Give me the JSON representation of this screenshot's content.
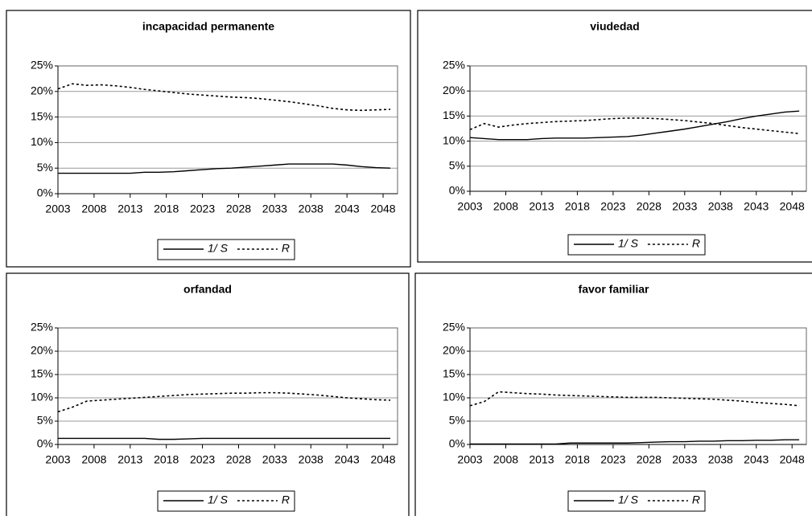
{
  "chart_data": [
    {
      "type": "line",
      "title": "incapacidad permanente",
      "x": [
        2003,
        2005,
        2007,
        2009,
        2011,
        2013,
        2015,
        2017,
        2019,
        2021,
        2023,
        2025,
        2027,
        2029,
        2031,
        2033,
        2035,
        2037,
        2039,
        2041,
        2043,
        2045,
        2047,
        2049
      ],
      "series": [
        {
          "name": "1/ S",
          "color": "#000000",
          "style": "solid",
          "values": [
            4,
            4,
            4,
            4,
            4,
            4,
            4.2,
            4.2,
            4.3,
            4.5,
            4.7,
            4.9,
            5.0,
            5.2,
            5.4,
            5.6,
            5.8,
            5.8,
            5.8,
            5.8,
            5.6,
            5.3,
            5.1,
            5.0
          ]
        },
        {
          "name": "R",
          "color": "#000000",
          "style": "dashed",
          "values": [
            20.5,
            21.5,
            21.2,
            21.3,
            21.1,
            20.8,
            20.4,
            20.1,
            19.8,
            19.5,
            19.3,
            19.1,
            18.9,
            18.8,
            18.6,
            18.3,
            18.0,
            17.6,
            17.2,
            16.7,
            16.4,
            16.3,
            16.4,
            16.5
          ]
        }
      ],
      "xlim": [
        2003,
        2050
      ],
      "xticks": [
        2003,
        2008,
        2013,
        2018,
        2023,
        2028,
        2033,
        2038,
        2043,
        2048
      ],
      "ylim": [
        0,
        25
      ],
      "yticks": [
        {
          "value": 0,
          "label": "0%"
        },
        {
          "value": 5,
          "label": "5%"
        },
        {
          "value": 10,
          "label": "10%"
        },
        {
          "value": 15,
          "label": "15%"
        },
        {
          "value": 20,
          "label": "20%"
        },
        {
          "value": 25,
          "label": "25%"
        }
      ],
      "grid": true,
      "legend": "bottom"
    },
    {
      "type": "line",
      "title": "viudedad",
      "x": [
        2003,
        2005,
        2007,
        2009,
        2011,
        2013,
        2015,
        2017,
        2019,
        2021,
        2023,
        2025,
        2027,
        2029,
        2031,
        2033,
        2035,
        2037,
        2039,
        2041,
        2043,
        2045,
        2047,
        2049
      ],
      "series": [
        {
          "name": "1/ S",
          "color": "#000000",
          "style": "solid",
          "values": [
            10.7,
            10.5,
            10.3,
            10.3,
            10.3,
            10.5,
            10.6,
            10.6,
            10.6,
            10.7,
            10.8,
            10.9,
            11.2,
            11.6,
            12.0,
            12.4,
            12.9,
            13.4,
            13.9,
            14.5,
            15.0,
            15.4,
            15.8,
            16.0
          ]
        },
        {
          "name": "R",
          "color": "#000000",
          "style": "dashed",
          "values": [
            12.3,
            13.5,
            12.8,
            13.2,
            13.5,
            13.7,
            13.9,
            14.0,
            14.1,
            14.3,
            14.5,
            14.6,
            14.6,
            14.5,
            14.3,
            14.1,
            13.8,
            13.5,
            13.1,
            12.7,
            12.4,
            12.1,
            11.8,
            11.5
          ]
        }
      ],
      "xlim": [
        2003,
        2050
      ],
      "xticks": [
        2003,
        2008,
        2013,
        2018,
        2023,
        2028,
        2033,
        2038,
        2043,
        2048
      ],
      "ylim": [
        0,
        25
      ],
      "yticks": [
        {
          "value": 0,
          "label": "0%"
        },
        {
          "value": 5,
          "label": "5%"
        },
        {
          "value": 10,
          "label": "10%"
        },
        {
          "value": 15,
          "label": "15%"
        },
        {
          "value": 20,
          "label": "20%"
        },
        {
          "value": 25,
          "label": "25%"
        }
      ],
      "grid": true,
      "legend": "bottom"
    },
    {
      "type": "line",
      "title": "orfandad",
      "x": [
        2003,
        2005,
        2007,
        2009,
        2011,
        2013,
        2015,
        2017,
        2019,
        2021,
        2023,
        2025,
        2027,
        2029,
        2031,
        2033,
        2035,
        2037,
        2039,
        2041,
        2043,
        2045,
        2047,
        2049
      ],
      "series": [
        {
          "name": "1/ S",
          "color": "#000000",
          "style": "solid",
          "values": [
            1.3,
            1.3,
            1.3,
            1.3,
            1.3,
            1.3,
            1.3,
            1.1,
            1.1,
            1.2,
            1.3,
            1.3,
            1.3,
            1.3,
            1.3,
            1.3,
            1.3,
            1.3,
            1.3,
            1.3,
            1.3,
            1.3,
            1.3,
            1.3
          ]
        },
        {
          "name": "R",
          "color": "#000000",
          "style": "dashed",
          "values": [
            7.0,
            8.0,
            9.3,
            9.5,
            9.7,
            9.9,
            10.1,
            10.3,
            10.5,
            10.7,
            10.8,
            10.9,
            11.0,
            11.0,
            11.1,
            11.1,
            11.0,
            10.8,
            10.6,
            10.3,
            10.0,
            9.8,
            9.6,
            9.5
          ]
        }
      ],
      "xlim": [
        2003,
        2050
      ],
      "xticks": [
        2003,
        2008,
        2013,
        2018,
        2023,
        2028,
        2033,
        2038,
        2043,
        2048
      ],
      "ylim": [
        0,
        25
      ],
      "yticks": [
        {
          "value": 0,
          "label": "0%"
        },
        {
          "value": 5,
          "label": "5%"
        },
        {
          "value": 10,
          "label": "10%"
        },
        {
          "value": 15,
          "label": "15%"
        },
        {
          "value": 20,
          "label": "20%"
        },
        {
          "value": 25,
          "label": "25%"
        }
      ],
      "grid": true,
      "legend": "bottom"
    },
    {
      "type": "line",
      "title": "favor familiar",
      "x": [
        2003,
        2005,
        2007,
        2009,
        2011,
        2013,
        2015,
        2017,
        2019,
        2021,
        2023,
        2025,
        2027,
        2029,
        2031,
        2033,
        2035,
        2037,
        2039,
        2041,
        2043,
        2045,
        2047,
        2049
      ],
      "series": [
        {
          "name": "1/ S",
          "color": "#000000",
          "style": "solid",
          "values": [
            0.1,
            0.1,
            0.1,
            0.1,
            0.1,
            0.1,
            0.1,
            0.3,
            0.3,
            0.3,
            0.3,
            0.3,
            0.4,
            0.5,
            0.6,
            0.6,
            0.7,
            0.7,
            0.8,
            0.8,
            0.9,
            0.9,
            1.0,
            1.0
          ]
        },
        {
          "name": "R",
          "color": "#000000",
          "style": "dashed",
          "values": [
            8.3,
            9.2,
            11.3,
            11.1,
            10.9,
            10.8,
            10.6,
            10.5,
            10.4,
            10.3,
            10.2,
            10.1,
            10.1,
            10.1,
            10.0,
            9.9,
            9.8,
            9.7,
            9.5,
            9.3,
            9.0,
            8.8,
            8.6,
            8.3
          ]
        }
      ],
      "xlim": [
        2003,
        2050
      ],
      "xticks": [
        2003,
        2008,
        2013,
        2018,
        2023,
        2028,
        2033,
        2038,
        2043,
        2048
      ],
      "ylim": [
        0,
        25
      ],
      "yticks": [
        {
          "value": 0,
          "label": "0%"
        },
        {
          "value": 5,
          "label": "5%"
        },
        {
          "value": 10,
          "label": "10%"
        },
        {
          "value": 15,
          "label": "15%"
        },
        {
          "value": 20,
          "label": "20%"
        },
        {
          "value": 25,
          "label": "25%"
        }
      ],
      "grid": true,
      "legend": "bottom"
    }
  ]
}
